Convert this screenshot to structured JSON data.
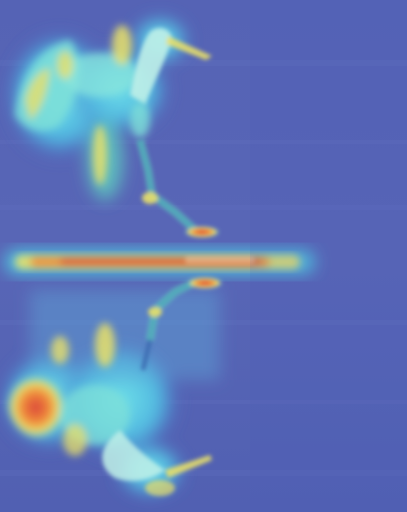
{
  "image": {
    "subject": "egret",
    "overlay": "attention-heatmap",
    "colors": {
      "background": "#5463b4",
      "cool": "#4a5cc0",
      "cyan": "#4fd6e6",
      "teal": "#5fd1c0",
      "yellow": "#e8e06a",
      "orange": "#f08a3a",
      "red": "#d9443a",
      "highlight": "#f6f2c8"
    }
  }
}
